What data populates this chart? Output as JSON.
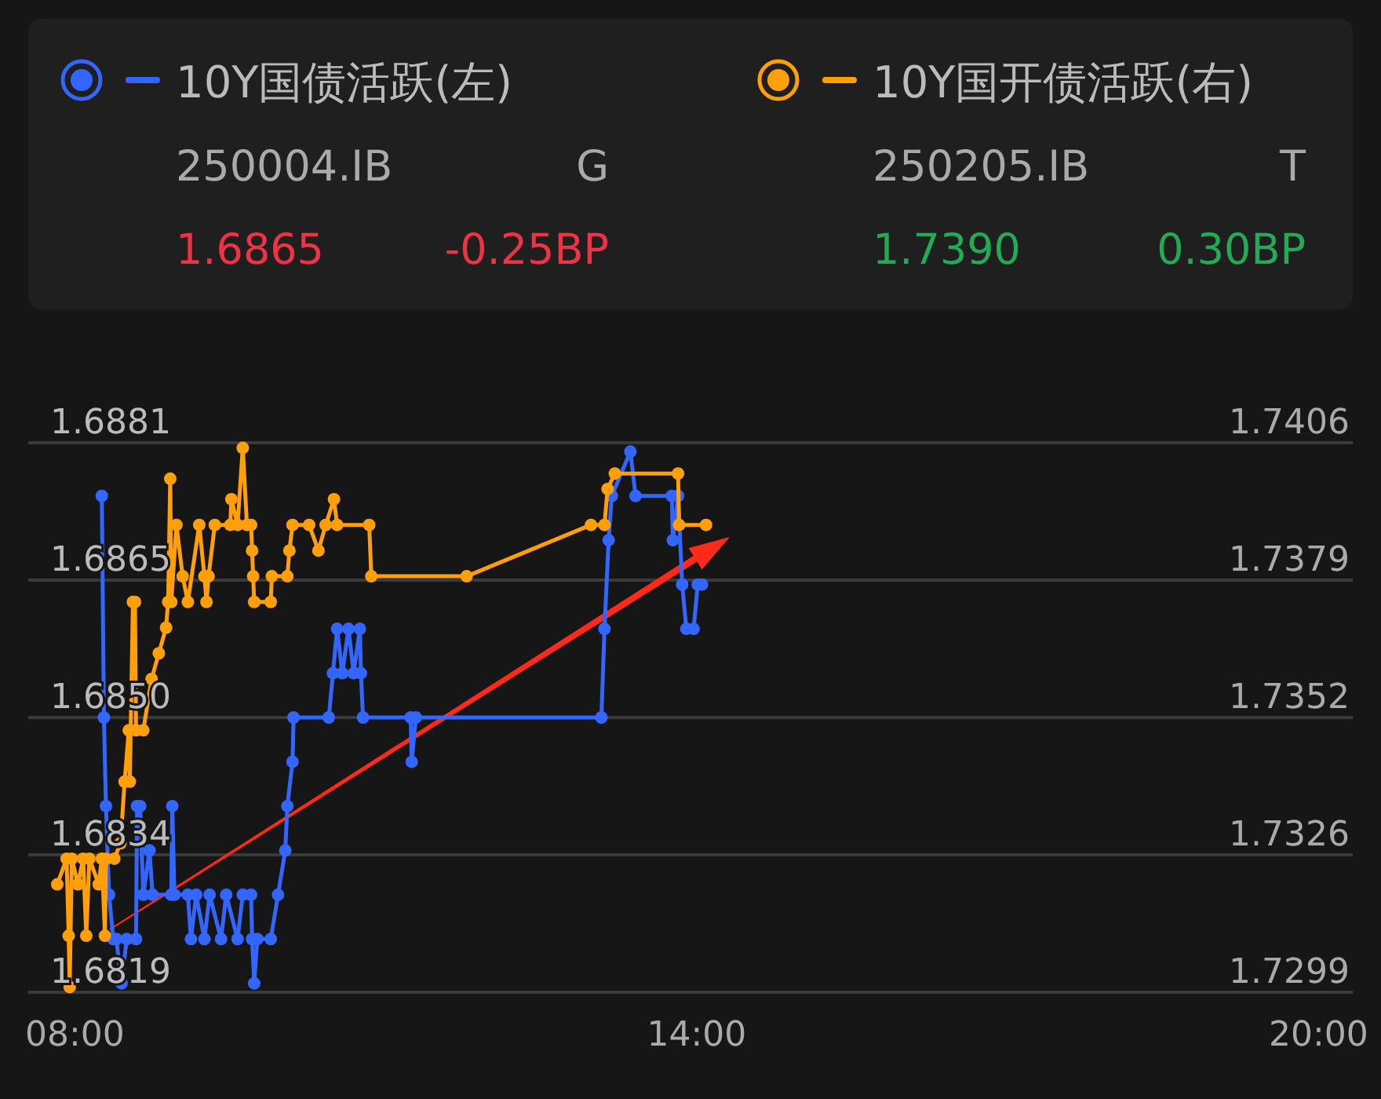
{
  "chart_data": {
    "type": "line",
    "legend": "top",
    "grid": "y",
    "marker": "circle",
    "xlim": [
      7.55,
      20.33
    ],
    "xticks": [
      {
        "value": 8,
        "label": "08:00"
      },
      {
        "value": 14,
        "label": "14:00"
      },
      {
        "value": 20,
        "label": "20:00"
      }
    ],
    "ylim": [
      1.6819,
      1.6881
    ],
    "yticks": [
      {
        "value": 1.6819,
        "label": "1.6819"
      },
      {
        "value": 1.68345,
        "label": "1.6834"
      },
      {
        "value": 1.685,
        "label": "1.6850"
      },
      {
        "value": 1.68655,
        "label": "1.6865"
      },
      {
        "value": 1.6881,
        "label": "1.6881"
      }
    ],
    "y2lim": [
      1.7299,
      1.7406
    ],
    "y2ticks": [
      {
        "value": 1.7299,
        "label": "1.7299"
      },
      {
        "value": 1.732575,
        "label": "1.7326"
      },
      {
        "value": 1.73525,
        "label": "1.7352"
      },
      {
        "value": 1.737925,
        "label": "1.7379"
      },
      {
        "value": 1.7406,
        "label": "1.7406"
      }
    ],
    "annotations": [
      "250004.IB",
      "G",
      "1.6865",
      "-0.25BP",
      "250205.IB",
      "T",
      "1.7390",
      "0.30BP"
    ],
    "series": [
      {
        "name": "10Y国债活跃(左)",
        "color": "#3366ff",
        "axis": "y",
        "x": [
          8.26,
          8.28,
          8.3,
          8.33,
          8.37,
          8.4,
          8.45,
          8.5,
          8.59,
          8.6,
          8.63,
          8.66,
          8.72,
          8.75,
          8.93,
          8.94,
          8.96,
          9.09,
          9.12,
          9.17,
          9.25,
          9.3,
          9.41,
          9.46,
          9.57,
          9.62,
          9.7,
          9.71,
          9.73,
          9.76,
          9.89,
          9.96,
          10.03,
          10.05,
          10.1,
          10.11,
          10.45,
          10.49,
          10.53,
          10.58,
          10.64,
          10.69,
          10.75,
          10.76,
          10.78,
          11.24,
          11.25,
          11.29,
          13.08,
          13.11,
          13.15,
          13.18,
          13.36,
          13.41,
          13.76,
          13.77,
          13.82,
          13.86,
          13.9,
          13.97,
          14.01,
          14.05
        ],
        "values": [
          1.6875,
          1.685,
          1.684,
          1.683,
          1.6825,
          1.6825,
          1.682,
          1.6825,
          1.6825,
          1.684,
          1.684,
          1.683,
          1.6835,
          1.683,
          1.683,
          1.684,
          1.683,
          1.683,
          1.6825,
          1.683,
          1.6825,
          1.683,
          1.6825,
          1.683,
          1.6825,
          1.683,
          1.683,
          1.6825,
          1.682,
          1.6825,
          1.6825,
          1.683,
          1.6835,
          1.684,
          1.6845,
          1.685,
          1.685,
          1.6855,
          1.686,
          1.6855,
          1.686,
          1.6855,
          1.686,
          1.6855,
          1.685,
          1.685,
          1.6845,
          1.685,
          1.685,
          1.686,
          1.687,
          1.6875,
          1.688,
          1.6875,
          1.6875,
          1.687,
          1.6875,
          1.6865,
          1.686,
          1.686,
          1.6865,
          1.6865
        ]
      },
      {
        "name": "10Y国开债活跃(右)",
        "color": "#ff9f0a",
        "axis": "y2",
        "x": [
          7.83,
          7.92,
          7.94,
          7.95,
          7.97,
          8.03,
          8.08,
          8.11,
          8.14,
          8.23,
          8.26,
          8.29,
          8.3,
          8.38,
          8.44,
          8.48,
          8.52,
          8.53,
          8.56,
          8.58,
          8.59,
          8.66,
          8.74,
          8.81,
          8.88,
          8.9,
          8.92,
          8.93,
          8.98,
          9.04,
          9.09,
          9.2,
          9.25,
          9.27,
          9.29,
          9.35,
          9.5,
          9.51,
          9.57,
          9.62,
          9.66,
          9.7,
          9.71,
          9.72,
          9.73,
          9.89,
          9.9,
          10.05,
          10.07,
          10.1,
          10.26,
          10.35,
          10.42,
          10.5,
          10.53,
          10.84,
          10.86,
          11.78,
          12.98,
          13.11,
          13.14,
          13.21,
          13.82,
          13.83,
          14.09
        ],
        "values": [
          1.732,
          1.7325,
          1.731,
          1.73,
          1.7325,
          1.732,
          1.7325,
          1.731,
          1.7325,
          1.732,
          1.7325,
          1.731,
          1.7325,
          1.7325,
          1.7328,
          1.734,
          1.735,
          1.734,
          1.7375,
          1.7375,
          1.735,
          1.735,
          1.736,
          1.7365,
          1.737,
          1.7375,
          1.7399,
          1.7375,
          1.739,
          1.738,
          1.7375,
          1.739,
          1.738,
          1.7375,
          1.738,
          1.739,
          1.739,
          1.7395,
          1.739,
          1.7405,
          1.739,
          1.739,
          1.7385,
          1.738,
          1.7375,
          1.7375,
          1.738,
          1.738,
          1.7385,
          1.739,
          1.739,
          1.7385,
          1.739,
          1.7395,
          1.739,
          1.739,
          1.738,
          1.738,
          1.739,
          1.739,
          1.7397,
          1.74,
          1.74,
          1.739,
          1.739
        ]
      }
    ]
  }
}
